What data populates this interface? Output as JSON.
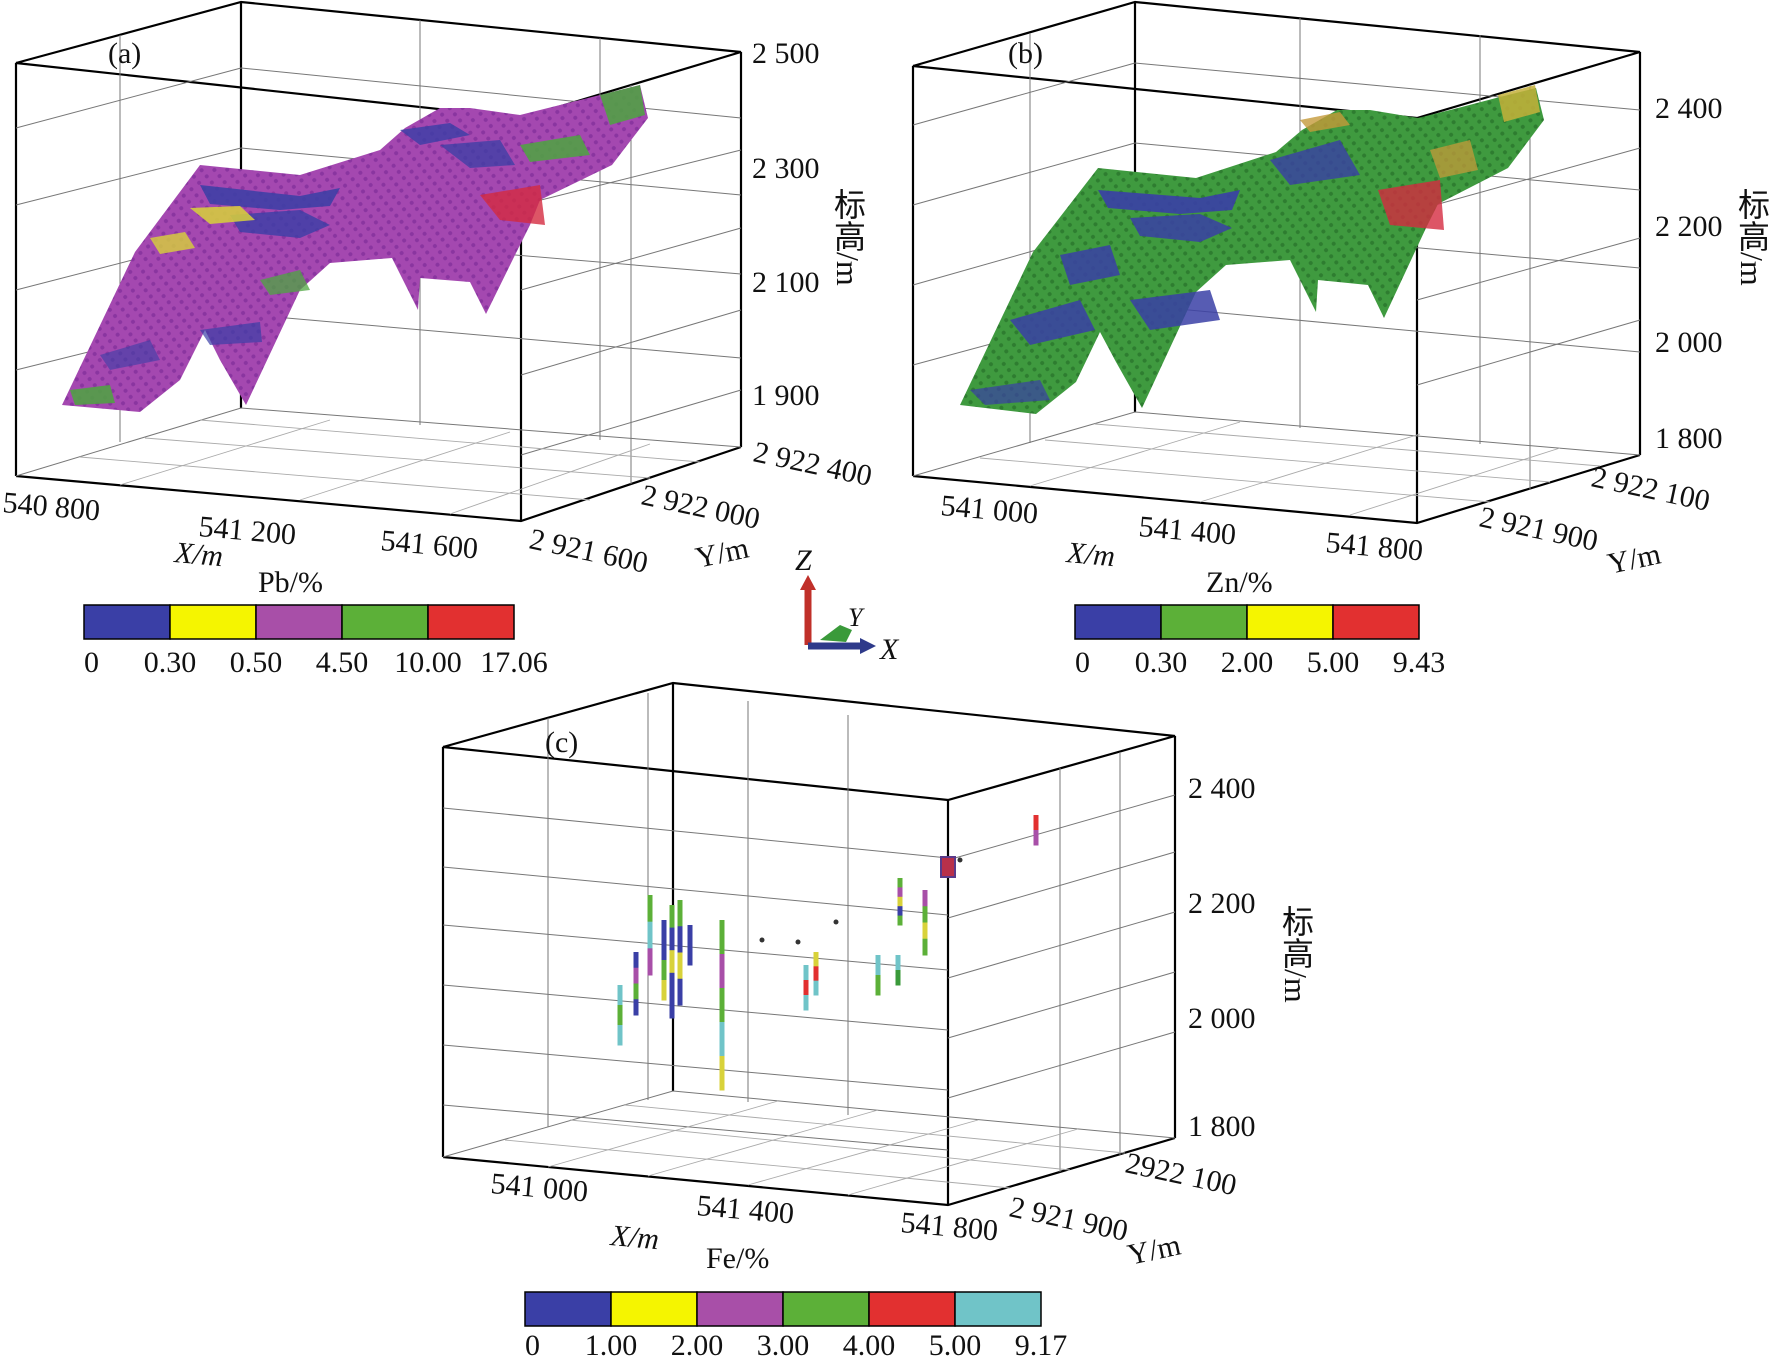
{
  "panels": {
    "a": {
      "label": "(a)",
      "z_ticks": [
        "2 500",
        "2 300",
        "2 100",
        "1 900"
      ],
      "x_ticks": [
        "540 800",
        "541 200",
        "541 600"
      ],
      "y_ticks": [
        "2 922 400",
        "2 922 000",
        "2 921 600"
      ],
      "x_axis_label": "X/m",
      "y_axis_label": "Y/m",
      "z_axis_label": "标高/m",
      "legend": {
        "title": "Pb/%",
        "colors": [
          "#3a3fa6",
          "#f5f500",
          "#a84fa8",
          "#5cb038",
          "#e23030"
        ],
        "breaks": [
          "0",
          "0.30",
          "0.50",
          "4.50",
          "10.00",
          "17.06"
        ]
      }
    },
    "b": {
      "label": "(b)",
      "z_ticks": [
        "2 400",
        "2 200",
        "2 000",
        "1 800"
      ],
      "x_ticks": [
        "541 000",
        "541 400",
        "541 800"
      ],
      "y_ticks": [
        "2 922 100",
        "2 921 900"
      ],
      "x_axis_label": "X/m",
      "y_axis_label": "Y/m",
      "z_axis_label": "标高/m",
      "legend": {
        "title": "Zn/%",
        "colors": [
          "#3a3fa6",
          "#5cb038",
          "#f5f500",
          "#e23030"
        ],
        "breaks": [
          "0",
          "0.30",
          "2.00",
          "5.00",
          "9.43"
        ]
      }
    },
    "c": {
      "label": "(c)",
      "z_ticks": [
        "2 400",
        "2 200",
        "2 000",
        "1 800"
      ],
      "x_ticks": [
        "541 000",
        "541 400",
        "541 800"
      ],
      "y_ticks": [
        "2922 100",
        "2 921 900"
      ],
      "x_axis_label": "X/m",
      "y_axis_label": "Y/m",
      "z_axis_label": "标高/m",
      "legend": {
        "title": "Fe/%",
        "colors": [
          "#3a3fa6",
          "#f5f500",
          "#a84fa8",
          "#5cb038",
          "#e23030",
          "#70c4c8"
        ],
        "breaks": [
          "0",
          "1.00",
          "2.00",
          "3.00",
          "4.00",
          "5.00",
          "9.17"
        ]
      }
    }
  },
  "axis_triad": {
    "z": "Z",
    "y": "Y",
    "x": "X",
    "colors": {
      "z": "#c0302a",
      "y": "#3a9a3a",
      "x": "#2e3a8a"
    }
  }
}
